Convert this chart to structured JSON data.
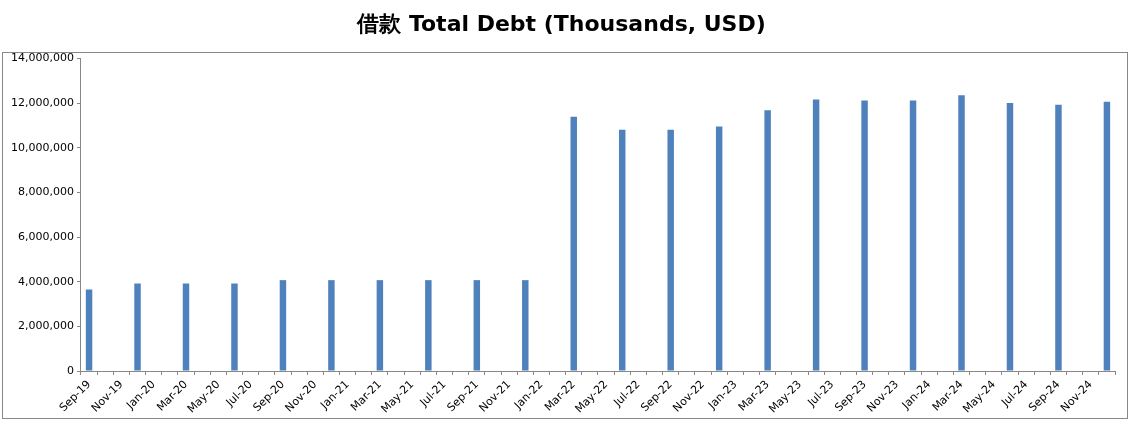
{
  "chart_data": {
    "type": "bar",
    "title": "借款 Total Debt (Thousands, USD)",
    "categories": [
      "Sep-19",
      null,
      "Nov-19",
      null,
      "Jan-20",
      null,
      "Mar-20",
      null,
      "May-20",
      null,
      "Jul-20",
      null,
      "Sep-20",
      null,
      "Nov-20",
      null,
      "Jan-21",
      null,
      "Mar-21",
      null,
      "May-21",
      null,
      "Jul-21",
      null,
      "Sep-21",
      null,
      "Nov-21",
      null,
      "Jan-22",
      null,
      "Mar-22",
      null,
      "May-22",
      null,
      "Jul-22",
      null,
      "Sep-22",
      null,
      "Nov-22",
      null,
      "Jan-23",
      null,
      "Mar-23",
      null,
      "May-23",
      null,
      "Jul-23",
      null,
      "Sep-23",
      null,
      "Nov-23",
      null,
      "Jan-24",
      null,
      "Mar-24",
      null,
      "May-24",
      null,
      "Jul-24",
      null,
      "Sep-24",
      null,
      "Nov-24",
      null
    ],
    "values": [
      3650000,
      null,
      null,
      3920000,
      null,
      null,
      3920000,
      null,
      null,
      3920000,
      null,
      null,
      4070000,
      null,
      null,
      4070000,
      null,
      null,
      4070000,
      null,
      null,
      4070000,
      null,
      null,
      4070000,
      null,
      null,
      4070000,
      null,
      null,
      11390000,
      null,
      null,
      10800000,
      null,
      null,
      10800000,
      null,
      null,
      10950000,
      null,
      null,
      11680000,
      null,
      null,
      12160000,
      null,
      null,
      12110000,
      null,
      null,
      12110000,
      null,
      null,
      12350000,
      null,
      null,
      12000000,
      null,
      null,
      11920000,
      null,
      null,
      12060000
    ],
    "color": "#4f81bd",
    "ylim": [
      0,
      14000000
    ],
    "yticks": [
      0,
      {
        "value": 2000000,
        "label": "2,000,000"
      },
      {
        "value": 4000000,
        "label": "4,000,000"
      },
      {
        "value": 6000000,
        "label": "6,000,000"
      },
      {
        "value": 8000000,
        "label": "8,000,000"
      },
      {
        "value": 10000000,
        "label": "10,000,000"
      },
      {
        "value": 12000000,
        "label": "12,000,000"
      },
      {
        "value": 14000000,
        "label": "14,000,000"
      }
    ]
  }
}
